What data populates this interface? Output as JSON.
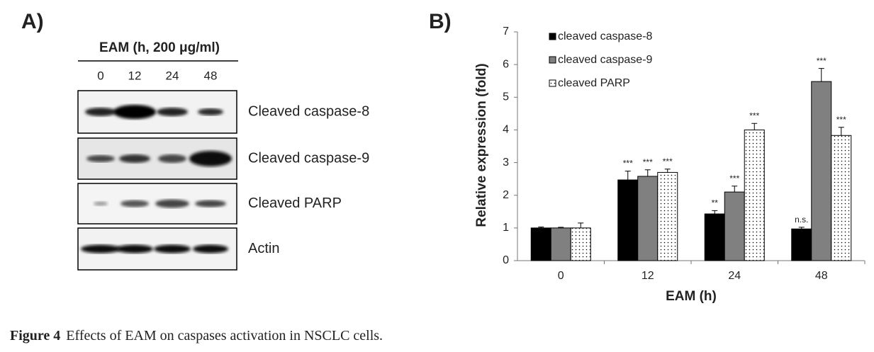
{
  "panel_a": {
    "label": "A)",
    "header": "EAM (h, 200 μg/ml)",
    "lanes": [
      "0",
      "12",
      "24",
      "48"
    ],
    "rows": [
      "Cleaved caspase-8",
      "Cleaved caspase-9",
      "Cleaved PARP",
      "Actin"
    ]
  },
  "chart_data": {
    "type": "bar",
    "label": "B)",
    "xlabel": "EAM (h)",
    "ylabel": "Relative expression (fold)",
    "categories": [
      "0",
      "12",
      "24",
      "48"
    ],
    "series": [
      {
        "name": "cleaved caspase-8",
        "color": "#000000",
        "pattern": "solid",
        "values": [
          1.0,
          2.47,
          1.43,
          0.97
        ],
        "errors": [
          0.03,
          0.27,
          0.1,
          0.05
        ],
        "annotations": [
          null,
          "***",
          "**",
          "n.s."
        ]
      },
      {
        "name": "cleaved caspase-9",
        "color": "#808080",
        "pattern": "solid",
        "values": [
          1.0,
          2.58,
          2.1,
          5.48
        ],
        "errors": [
          0.02,
          0.2,
          0.18,
          0.4
        ],
        "annotations": [
          null,
          "***",
          "***",
          "***"
        ]
      },
      {
        "name": "cleaved PARP",
        "color": "#ffffff",
        "pattern": "dots",
        "values": [
          1.0,
          2.7,
          4.0,
          3.83
        ],
        "errors": [
          0.15,
          0.1,
          0.2,
          0.25
        ],
        "annotations": [
          null,
          "***",
          "***",
          "***"
        ]
      }
    ],
    "ylim": [
      0,
      7
    ],
    "yticks": [
      0,
      1,
      2,
      3,
      4,
      5,
      6,
      7
    ],
    "grid": false,
    "legend": "upper left"
  },
  "caption": {
    "label": "Figure 4",
    "text": "Effects of EAM on caspases activation in NSCLC cells."
  }
}
